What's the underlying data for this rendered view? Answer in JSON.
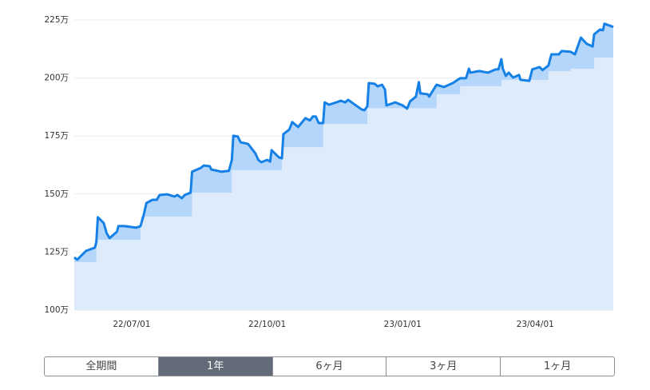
{
  "chart_data": {
    "type": "line",
    "xlim": [
      "22/05/23",
      "23/05/24"
    ],
    "xticks": [
      "22/07/01",
      "22/10/01",
      "23/01/01",
      "23/04/01"
    ],
    "ylim": [
      100,
      225
    ],
    "yticks": [
      {
        "value": 100,
        "label": "100万"
      },
      {
        "value": 125,
        "label": "125万"
      },
      {
        "value": 150,
        "label": "150万"
      },
      {
        "value": 175,
        "label": "175万"
      },
      {
        "value": 200,
        "label": "200万"
      },
      {
        "value": 225,
        "label": "225万"
      }
    ],
    "grid": true,
    "series": [
      {
        "color": "#1580e6",
        "area_color": "#b4d6fa",
        "drawstyle": "line",
        "x": [
          "22/05/23",
          "22/05/25",
          "22/05/31",
          "22/06/06",
          "22/06/07",
          "22/06/08",
          "22/06/12",
          "22/06/14",
          "22/06/16",
          "22/06/21",
          "22/06/22",
          "22/06/26",
          "22/07/04",
          "22/07/07",
          "22/07/09",
          "22/07/11",
          "22/07/15",
          "22/07/18",
          "22/07/20",
          "22/07/25",
          "22/07/30",
          "22/08/01",
          "22/08/04",
          "22/08/06",
          "22/08/10",
          "22/08/11",
          "22/08/17",
          "22/08/19",
          "22/08/23",
          "22/08/24",
          "22/08/31",
          "22/09/05",
          "22/09/07",
          "22/09/08",
          "22/09/11",
          "22/09/13",
          "22/09/18",
          "22/09/23",
          "22/09/25",
          "22/09/27",
          "22/10/01",
          "22/10/03",
          "22/10/04",
          "22/10/09",
          "22/10/11",
          "22/10/12",
          "22/10/16",
          "22/10/18",
          "22/10/22",
          "22/10/27",
          "22/10/30",
          "22/11/01",
          "22/11/03",
          "22/11/05",
          "22/11/08",
          "22/11/09",
          "22/11/12",
          "22/11/17",
          "22/11/20",
          "22/11/23",
          "22/11/25",
          "22/11/28",
          "22/12/04",
          "22/12/06",
          "22/12/08",
          "22/12/09",
          "22/12/13",
          "22/12/15",
          "22/12/18",
          "22/12/20",
          "22/12/21",
          "22/12/27",
          "23/01/01",
          "23/01/04",
          "23/01/06",
          "23/01/10",
          "23/01/12",
          "23/01/13",
          "23/01/18",
          "23/01/19",
          "23/01/24",
          "23/01/29",
          "23/02/04",
          "23/02/09",
          "23/02/13",
          "23/02/15",
          "23/02/16",
          "23/02/22",
          "23/02/28",
          "23/03/05",
          "23/03/07",
          "23/03/09",
          "23/03/10",
          "23/03/12",
          "23/03/14",
          "23/03/17",
          "23/03/21",
          "23/03/22",
          "23/03/28",
          "23/03/30",
          "23/04/04",
          "23/04/06",
          "23/04/10",
          "23/04/12",
          "23/04/17",
          "23/04/19",
          "23/04/25",
          "23/04/28",
          "23/05/02",
          "23/05/06",
          "23/05/10",
          "23/05/11",
          "23/05/15",
          "23/05/17",
          "23/05/18",
          "23/05/21",
          "23/05/24"
        ],
        "values": [
          122.7,
          121.7,
          125.5,
          126.9,
          129.3,
          140.0,
          137.5,
          133.1,
          131.0,
          133.8,
          136.2,
          136.2,
          135.5,
          136.2,
          140.6,
          146.1,
          147.5,
          147.5,
          149.6,
          149.9,
          148.9,
          149.6,
          148.2,
          149.6,
          150.6,
          159.6,
          161.3,
          162.3,
          162.0,
          160.6,
          159.6,
          160.0,
          164.7,
          175.1,
          174.8,
          172.3,
          171.6,
          167.5,
          164.7,
          163.7,
          164.7,
          164.0,
          168.9,
          165.8,
          165.4,
          175.8,
          177.8,
          181.0,
          178.9,
          182.7,
          181.7,
          183.4,
          183.4,
          180.6,
          180.6,
          189.5,
          188.5,
          189.5,
          190.2,
          189.5,
          190.6,
          189.2,
          186.5,
          186.1,
          187.8,
          197.8,
          197.5,
          196.4,
          197.1,
          195.0,
          188.2,
          189.5,
          188.2,
          186.8,
          189.9,
          192.0,
          198.2,
          193.4,
          193.0,
          192.0,
          197.1,
          196.1,
          197.8,
          199.9,
          199.9,
          204.0,
          202.3,
          203.0,
          202.3,
          203.7,
          203.7,
          208.1,
          204.0,
          200.9,
          202.3,
          200.2,
          201.3,
          199.2,
          198.8,
          203.7,
          204.7,
          203.4,
          205.4,
          210.2,
          210.2,
          211.6,
          211.3,
          210.2,
          217.4,
          214.7,
          213.6,
          218.8,
          220.9,
          220.6,
          223.4,
          222.7,
          222.0
        ]
      },
      {
        "color": "#deebfa",
        "drawstyle": "steps-post",
        "x": [
          "22/05/23",
          "22/06/07",
          "22/07/07",
          "22/08/11",
          "22/09/07",
          "22/10/11",
          "22/11/08",
          "22/12/08",
          "23/01/24",
          "23/02/09",
          "23/03/09",
          "23/04/10",
          "23/04/25",
          "23/05/11",
          "23/05/24"
        ],
        "values": [
          120.7,
          130.3,
          140.3,
          150.6,
          160.3,
          170.2,
          180.2,
          187.0,
          193.0,
          196.5,
          199.2,
          203.0,
          204.0,
          208.8,
          208.8
        ]
      }
    ]
  },
  "tabs": {
    "items": [
      "全期間",
      "1年",
      "6ヶ月",
      "3ヶ月",
      "1ヶ月"
    ],
    "active_index": 1
  }
}
